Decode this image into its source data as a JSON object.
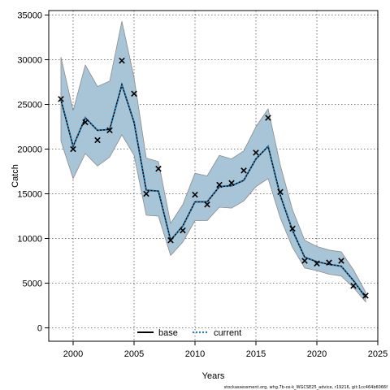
{
  "chart_data": {
    "type": "line",
    "xlabel": "Years",
    "ylabel": "Catch",
    "xlim": [
      1998,
      2025
    ],
    "ylim": [
      -1500,
      35500
    ],
    "x_ticks": [
      2000,
      2005,
      2010,
      2015,
      2020,
      2025
    ],
    "y_ticks": [
      0,
      5000,
      10000,
      15000,
      20000,
      25000,
      30000,
      35000
    ],
    "grid": true,
    "legend_position": "bottom-center",
    "band_color": "#a7c5d6",
    "band_edge_color": "#8a8a8a",
    "x": [
      1999,
      2000,
      2001,
      2002,
      2003,
      2004,
      2005,
      2006,
      2007,
      2008,
      2009,
      2010,
      2011,
      2012,
      2013,
      2014,
      2015,
      2016,
      2017,
      2018,
      2019,
      2020,
      2021,
      2022,
      2023,
      2024
    ],
    "band_upper": [
      30300,
      24300,
      29400,
      27000,
      27600,
      34300,
      28000,
      19000,
      18600,
      11700,
      13800,
      17300,
      17000,
      19300,
      18900,
      19800,
      22500,
      24500,
      18200,
      13200,
      9800,
      9100,
      8700,
      8500,
      6500,
      4000
    ],
    "band_lower": [
      20900,
      16700,
      19500,
      18100,
      19100,
      21600,
      19300,
      12600,
      12500,
      8100,
      9600,
      12000,
      12000,
      13500,
      13400,
      14200,
      15800,
      16700,
      12300,
      9000,
      6700,
      6400,
      6000,
      5800,
      4500,
      2900
    ],
    "series": [
      {
        "name": "base",
        "style": "solid",
        "color": "#000000",
        "values": [
          25500,
          20300,
          23500,
          22100,
          22200,
          27200,
          23000,
          15400,
          15300,
          9800,
          11400,
          14100,
          14100,
          15800,
          15900,
          16500,
          18900,
          20300,
          14800,
          10900,
          7900,
          7400,
          7100,
          6900,
          5300,
          3400
        ]
      },
      {
        "name": "current",
        "style": "dotted",
        "color": "#2a7fb8",
        "values": [
          25500,
          20300,
          23500,
          22100,
          22200,
          27200,
          23000,
          15400,
          15300,
          9800,
          11400,
          14100,
          14100,
          15800,
          15900,
          16500,
          18900,
          20300,
          14800,
          10900,
          7900,
          7400,
          7100,
          6900,
          5300,
          3400
        ]
      }
    ],
    "observed": {
      "marker": "x",
      "values": [
        25600,
        20000,
        23000,
        21000,
        22100,
        29900,
        26200,
        15000,
        17800,
        9800,
        10900,
        14900,
        13800,
        16000,
        16200,
        17600,
        19600,
        23500,
        15200,
        11100,
        7500,
        7200,
        7300,
        7500,
        4700,
        3600
      ]
    }
  },
  "footnote": "stockassessment.org, whg.7b-ce-k_WGCSE25_advice, r19216, git:1cc464b6066f"
}
